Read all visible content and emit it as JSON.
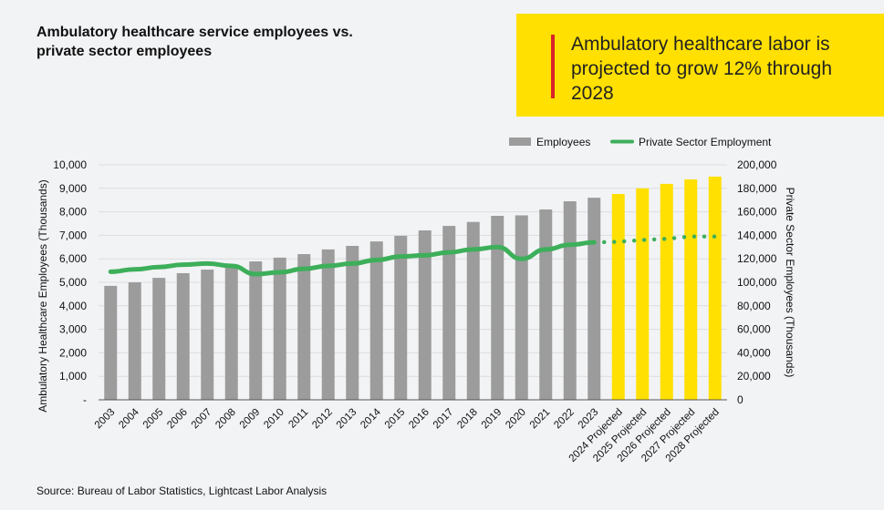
{
  "title": "Ambulatory healthcare service employees vs. private sector employees",
  "callout": "Ambulatory healthcare labor is projected to grow 12% through 2028",
  "source": "Source: Bureau of Labor Statistics, Lightcast Labor Analysis",
  "colors": {
    "bars": "#9b9c9b",
    "projected_bars": "#ffe000",
    "line": "#3daf5a",
    "callout_bg": "#ffe000",
    "callout_accent": "#d9232a"
  },
  "chart_data": {
    "type": "bar+line",
    "categories": [
      "2003",
      "2004",
      "2005",
      "2006",
      "2007",
      "2008",
      "2009",
      "2010",
      "2011",
      "2012",
      "2013",
      "2014",
      "2015",
      "2016",
      "2017",
      "2018",
      "2019",
      "2020",
      "2021",
      "2022",
      "2023",
      "2024 Projected",
      "2025 Projected",
      "2026 Projected",
      "2027 Projected",
      "2028 Projected"
    ],
    "legend_position": "top-right",
    "grid": true,
    "y_left": {
      "label": "Ambulatory Healthcare Employees (Thousands)",
      "range": [
        0,
        10000
      ],
      "ticks": [
        "-",
        "1,000",
        "2,000",
        "3,000",
        "4,000",
        "5,000",
        "6,000",
        "7,000",
        "8,000",
        "9,000",
        "10,000"
      ]
    },
    "y_right": {
      "label": "Private Sector Employees (Thousands)",
      "range": [
        0,
        200000
      ],
      "ticks": [
        "0",
        "20,000",
        "40,000",
        "60,000",
        "80,000",
        "100,000",
        "120,000",
        "140,000",
        "160,000",
        "180,000",
        "200,000"
      ]
    },
    "series": [
      {
        "name": "Employees",
        "type": "bar",
        "axis": "left",
        "values": [
          4850,
          5000,
          5190,
          5390,
          5540,
          5700,
          5890,
          6050,
          6200,
          6400,
          6550,
          6740,
          6980,
          7210,
          7400,
          7570,
          7830,
          7850,
          8100,
          8450,
          8600,
          8760,
          9000,
          9190,
          9380,
          9500
        ]
      },
      {
        "name": "Private Sector Employment",
        "type": "line",
        "axis": "right",
        "values": [
          109000,
          111000,
          113000,
          115000,
          116000,
          114000,
          107000,
          108500,
          111500,
          114000,
          116000,
          119000,
          122000,
          123000,
          125500,
          128000,
          130000,
          120000,
          128000,
          132000,
          134000,
          134500,
          136000,
          137000,
          139000,
          139000
        ]
      }
    ],
    "projected_from": "2024 Projected"
  }
}
